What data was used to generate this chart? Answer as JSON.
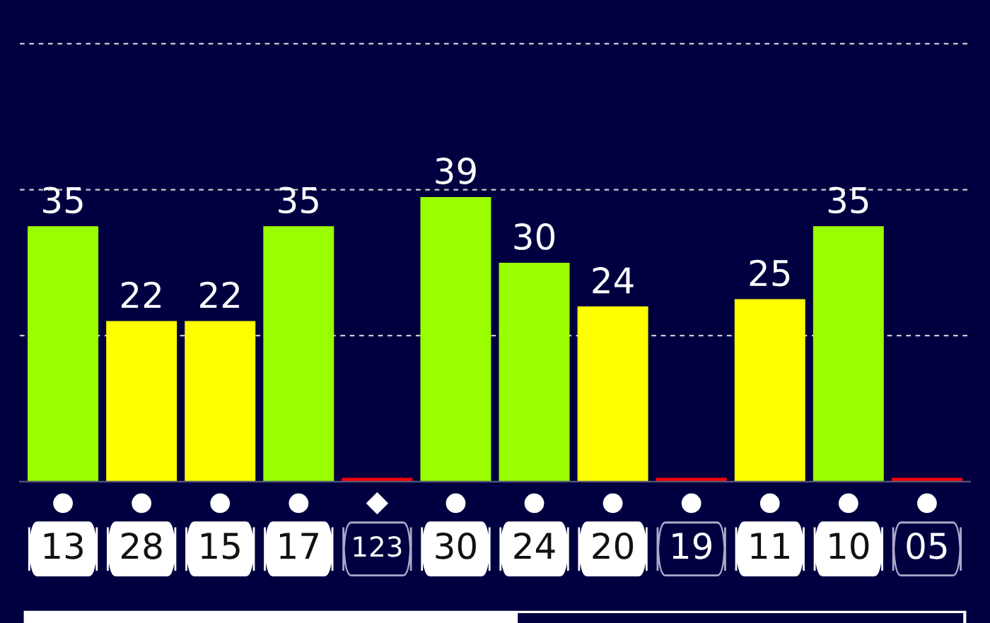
{
  "chart_data": {
    "type": "bar",
    "categories": [
      "13",
      "28",
      "15",
      "17",
      "123",
      "30",
      "24",
      "20",
      "19",
      "11",
      "10",
      "05"
    ],
    "values": [
      35,
      22,
      22,
      35,
      0.5,
      39,
      30,
      24,
      0.5,
      25,
      35,
      0.5
    ],
    "colors": [
      "#99ff00",
      "#ffff00",
      "#ffff00",
      "#99ff00",
      "#ff0000",
      "#99ff00",
      "#99ff00",
      "#ffff00",
      "#ff0000",
      "#ffff00",
      "#99ff00",
      "#ff0000"
    ],
    "value_labels": [
      "35",
      "22",
      "22",
      "35",
      null,
      "39",
      "30",
      "24",
      null,
      "25",
      "35",
      null
    ],
    "ylim": [
      0,
      66
    ],
    "yticks": [
      {
        "value": 20,
        "label": null
      },
      {
        "value": 40,
        "label": null
      },
      {
        "value": 60,
        "label": null
      }
    ],
    "grid": "y",
    "tick_labels": "x"
  }
}
